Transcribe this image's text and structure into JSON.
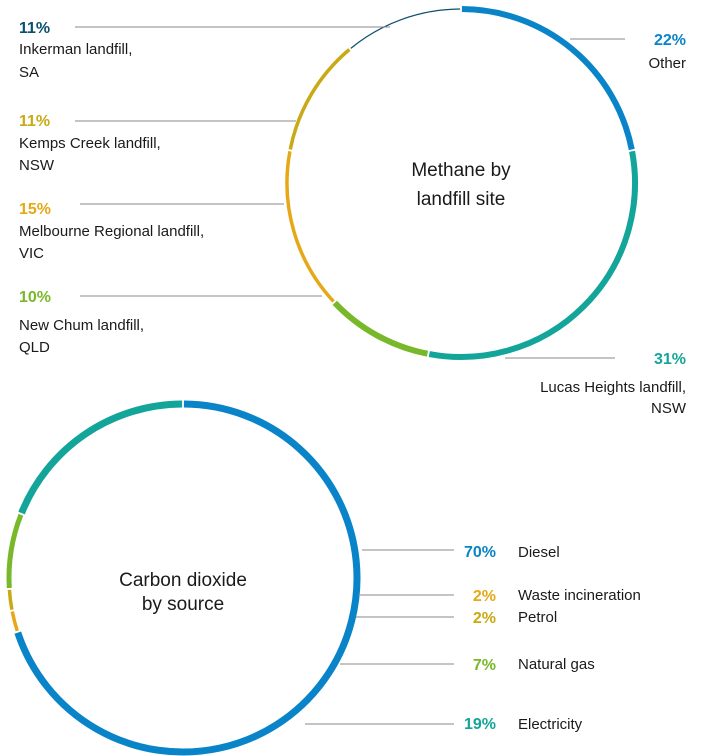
{
  "chart_data": [
    {
      "type": "pie",
      "title": "Methane by landfill site",
      "title_lines": [
        "Methane by",
        "landfill site"
      ],
      "slices": [
        {
          "name_lines": [
            "Other"
          ],
          "value": 22,
          "label": "22%",
          "color": "#0a84c8"
        },
        {
          "name_lines": [
            "Lucas Heights landfill,",
            "NSW"
          ],
          "value": 31,
          "label": "31%",
          "color": "#13a59a"
        },
        {
          "name_lines": [
            "New Chum landfill,",
            "QLD"
          ],
          "value": 10,
          "label": "10%",
          "color": "#78b82a"
        },
        {
          "name_lines": [
            "Melbourne Regional landfill,",
            "VIC"
          ],
          "value": 15,
          "label": "15%",
          "color": "#e6a817"
        },
        {
          "name_lines": [
            "Kemps Creek landfill,",
            "NSW"
          ],
          "value": 11,
          "label": "11%",
          "color": "#c9a914"
        },
        {
          "name_lines": [
            "Inkerman landfill,",
            "SA"
          ],
          "value": 11,
          "label": "11%",
          "color": "#0d4f6e"
        }
      ]
    },
    {
      "type": "pie",
      "title": "Carbon dioxide by source",
      "title_lines": [
        "Carbon dioxide",
        "by source"
      ],
      "slices": [
        {
          "name_lines": [
            "Diesel"
          ],
          "value": 70,
          "label": "70%",
          "color": "#0a84c8"
        },
        {
          "name_lines": [
            "Waste incineration"
          ],
          "value": 2,
          "label": "2%",
          "color": "#e6a817"
        },
        {
          "name_lines": [
            "Petrol"
          ],
          "value": 2,
          "label": "2%",
          "color": "#c9a914"
        },
        {
          "name_lines": [
            "Natural gas"
          ],
          "value": 7,
          "label": "7%",
          "color": "#78b82a"
        },
        {
          "name_lines": [
            "Electricity"
          ],
          "value": 19,
          "label": "19%",
          "color": "#13a59a"
        }
      ]
    }
  ]
}
